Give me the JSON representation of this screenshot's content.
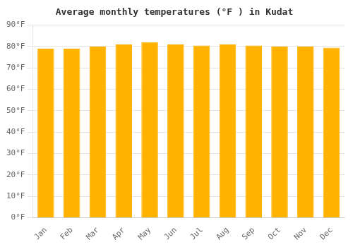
{
  "chart_data": {
    "type": "bar",
    "title": "Average monthly temperatures (°F ) in Kudat",
    "categories": [
      "Jan",
      "Feb",
      "Mar",
      "Apr",
      "May",
      "Jun",
      "Jul",
      "Aug",
      "Sep",
      "Oct",
      "Nov",
      "Dec"
    ],
    "values": [
      79,
      79,
      80,
      81,
      82,
      81,
      80.5,
      81,
      80.5,
      80,
      80,
      79.5
    ],
    "color": "#FFB300",
    "ylim": [
      0,
      90
    ],
    "yticks": [
      {
        "value": 0,
        "label": "0°F"
      },
      {
        "value": 10,
        "label": "10°F"
      },
      {
        "value": 20,
        "label": "20°F"
      },
      {
        "value": 30,
        "label": "30°F"
      },
      {
        "value": 40,
        "label": "40°F"
      },
      {
        "value": 50,
        "label": "50°F"
      },
      {
        "value": 60,
        "label": "60°F"
      },
      {
        "value": 70,
        "label": "70°F"
      },
      {
        "value": 80,
        "label": "80°F"
      },
      {
        "value": 90,
        "label": "90°F"
      }
    ],
    "grid": true
  }
}
